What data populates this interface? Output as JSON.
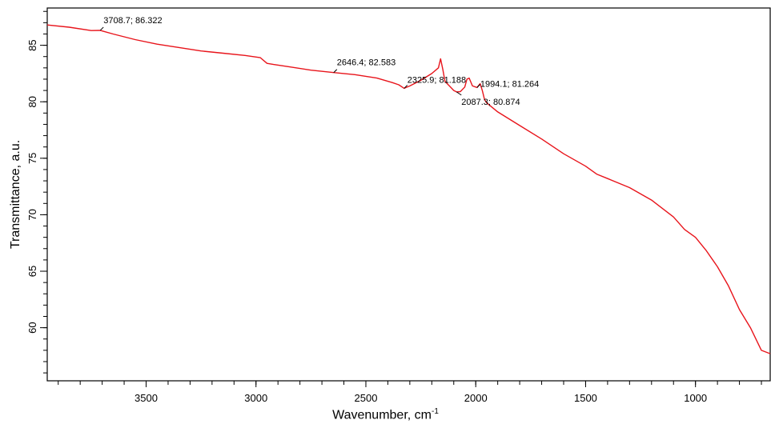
{
  "chart_data": {
    "type": "line",
    "xlabel": "Wavenumber, cm",
    "xlabel_sup": "-1",
    "ylabel": "Transmittance, a.u.",
    "xlim": [
      3950,
      660
    ],
    "ylim": [
      55.3,
      88.3
    ],
    "x_ticks": [
      3500,
      3000,
      2500,
      2000,
      1500,
      1000
    ],
    "y_ticks": [
      60,
      65,
      70,
      75,
      80,
      85
    ],
    "grid": false,
    "legend": "none",
    "line_color": "#e8141b",
    "series": [
      {
        "x": [
          3950,
          3850,
          3750,
          3708.7,
          3650,
          3550,
          3450,
          3350,
          3250,
          3150,
          3050,
          2980,
          2950,
          2920,
          2850,
          2750,
          2646.4,
          2550,
          2450,
          2380,
          2350,
          2325.9,
          2300,
          2250,
          2200,
          2170,
          2160,
          2150,
          2140,
          2120,
          2100,
          2087.3,
          2070,
          2050,
          2040,
          2030,
          2015,
          2000,
          1994.1,
          1980,
          1970,
          1960,
          1950,
          1900,
          1850,
          1800,
          1700,
          1600,
          1500,
          1450,
          1400,
          1300,
          1200,
          1100,
          1050,
          1000,
          950,
          900,
          850,
          800,
          750,
          700,
          660
        ],
        "y": [
          86.8,
          86.6,
          86.3,
          86.32,
          86.0,
          85.5,
          85.1,
          84.8,
          84.5,
          84.3,
          84.1,
          83.9,
          83.4,
          83.3,
          83.1,
          82.8,
          82.583,
          82.4,
          82.1,
          81.7,
          81.5,
          81.188,
          81.4,
          81.9,
          82.5,
          83.0,
          83.8,
          82.9,
          81.8,
          81.4,
          81.0,
          80.874,
          80.9,
          81.3,
          82.0,
          82.1,
          81.4,
          81.3,
          81.264,
          81.6,
          81.0,
          80.2,
          79.9,
          79.1,
          78.5,
          77.9,
          76.7,
          75.4,
          74.3,
          73.6,
          73.2,
          72.4,
          71.3,
          69.8,
          68.7,
          68.0,
          66.8,
          65.4,
          63.7,
          61.6,
          60.0,
          58.0,
          57.7
        ]
      }
    ],
    "annotations": [
      {
        "text": "3708.7; 86.322",
        "x": 3708.7,
        "y": 86.322
      },
      {
        "text": "2646.4; 82.583",
        "x": 2646.4,
        "y": 82.583
      },
      {
        "text": "2325.9; 81.188",
        "x": 2325.9,
        "y": 81.188
      },
      {
        "text": "1994.1; 81.264",
        "x": 1994.1,
        "y": 81.264
      },
      {
        "text": "2087.3; 80.874",
        "x": 2087.3,
        "y": 80.874
      }
    ]
  }
}
